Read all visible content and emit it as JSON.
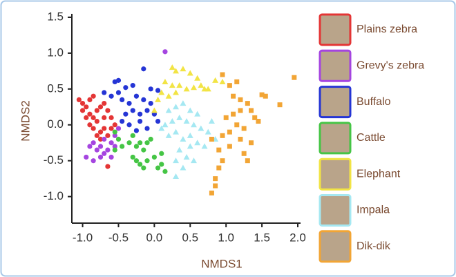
{
  "chart_data": {
    "type": "scatter",
    "xlabel": "NMDS1",
    "ylabel": "NMDS2",
    "xlim": [
      -1.15,
      2.0
    ],
    "ylim": [
      -1.37,
      1.5
    ],
    "xticks": [
      {
        "value": -1,
        "label": "-1.0"
      },
      -0.5,
      {
        "value": 0,
        "label": "0.0"
      },
      0.5,
      {
        "value": 1,
        "label": "1.0"
      },
      1.5,
      {
        "value": 2,
        "label": "2.0"
      }
    ],
    "yticks": [
      {
        "value": -1,
        "label": "-1.0"
      },
      -0.5,
      {
        "value": 0,
        "label": "0.0"
      },
      0.5,
      {
        "value": 1,
        "label": "1.0"
      },
      1.5
    ],
    "series": [
      {
        "name": "Plains zebra",
        "color": "#e43535",
        "marker": "circle",
        "x": [
          -1.05,
          -1.0,
          -0.95,
          -0.9,
          -0.85,
          -1.0,
          -0.95,
          -0.9,
          -0.85,
          -0.8,
          -0.75,
          -0.7,
          -0.65,
          -0.9,
          -0.85,
          -0.8,
          -0.75,
          -0.7,
          -0.65,
          -0.6,
          -0.75,
          -0.8,
          -0.7,
          -0.6,
          -0.55,
          -0.65
        ],
        "values": [
          0.35,
          0.3,
          0.25,
          0.35,
          0.4,
          0.2,
          0.1,
          0.15,
          0.1,
          0.2,
          0.25,
          0.3,
          0.2,
          0.0,
          -0.05,
          0.05,
          -0.1,
          -0.05,
          -0.15,
          -0.05,
          -0.2,
          -0.15,
          0.1,
          0.1,
          0.0,
          -0.58
        ]
      },
      {
        "name": "Grevy's zebra",
        "color": "#a545e0",
        "marker": "circle",
        "x": [
          -0.95,
          -0.9,
          -0.85,
          -0.8,
          -0.75,
          -0.7,
          -0.65,
          -0.6,
          -0.55,
          -0.7,
          -0.75,
          -0.6,
          -0.55,
          -0.5,
          -0.85,
          0.15
        ],
        "values": [
          -0.45,
          -0.3,
          -0.25,
          -0.35,
          -0.3,
          -0.4,
          -0.35,
          -0.25,
          -0.3,
          -0.2,
          -0.45,
          -0.45,
          -0.15,
          -0.05,
          -0.5,
          1.02
        ]
      },
      {
        "name": "Buffalo",
        "color": "#2535d5",
        "marker": "circle",
        "x": [
          -0.55,
          -0.5,
          -0.4,
          -0.3,
          -0.15,
          -0.05,
          0.05,
          -0.45,
          -0.35,
          -0.25,
          -0.15,
          -0.05,
          -0.4,
          -0.3,
          -0.2,
          -0.1,
          0.0,
          -0.45,
          -0.35,
          -0.2,
          -0.1,
          -0.25,
          -0.6,
          -0.5,
          0.05,
          -0.7
        ],
        "values": [
          0.6,
          0.62,
          0.52,
          0.55,
          0.78,
          0.5,
          0.48,
          0.35,
          0.3,
          0.4,
          0.35,
          0.3,
          0.15,
          0.2,
          0.15,
          0.2,
          0.15,
          0.05,
          0.0,
          0.05,
          -0.05,
          -0.08,
          0.4,
          0.45,
          0.05,
          0.45
        ]
      },
      {
        "name": "Cattle",
        "color": "#45c545",
        "marker": "circle",
        "x": [
          -0.55,
          -0.5,
          -0.45,
          -0.3,
          -0.25,
          -0.2,
          -0.15,
          -0.1,
          -0.05,
          -0.3,
          -0.25,
          -0.2,
          -0.1,
          0.0,
          0.1,
          0.05,
          -0.15,
          0.1,
          -0.55,
          -0.35,
          0.15
        ],
        "values": [
          -0.1,
          -0.2,
          -0.3,
          -0.15,
          -0.3,
          -0.25,
          -0.35,
          -0.25,
          -0.2,
          -0.45,
          -0.5,
          -0.55,
          -0.5,
          -0.45,
          -0.55,
          -0.6,
          -0.6,
          -0.4,
          -0.35,
          -0.25,
          -0.65
        ]
      },
      {
        "name": "Elephant",
        "color": "#f2e445",
        "marker": "triangle",
        "x": [
          0.25,
          0.3,
          0.4,
          0.5,
          0.6,
          0.65,
          0.7,
          0.15,
          0.25,
          0.35,
          0.45,
          0.55,
          0.1,
          0.2,
          0.05,
          0.85,
          0.95,
          0.0,
          0.75,
          0.3
        ],
        "values": [
          0.8,
          0.75,
          0.78,
          0.72,
          0.65,
          0.55,
          0.5,
          0.6,
          0.55,
          0.55,
          0.5,
          0.52,
          0.45,
          0.4,
          0.35,
          0.62,
          0.6,
          0.2,
          0.5,
          0.45
        ]
      },
      {
        "name": "Impala",
        "color": "#a5e8f2",
        "marker": "triangle",
        "x": [
          0.2,
          0.3,
          0.4,
          0.5,
          0.6,
          0.15,
          0.25,
          0.35,
          0.45,
          0.55,
          0.65,
          0.75,
          0.85,
          0.2,
          0.3,
          0.4,
          0.5,
          0.6,
          0.7,
          0.35,
          0.45,
          0.55,
          0.3,
          0.4,
          0.3,
          0.5,
          0.8,
          0.1
        ],
        "values": [
          0.2,
          0.25,
          0.3,
          0.2,
          0.15,
          0.0,
          0.05,
          0.1,
          0.05,
          0.0,
          -0.05,
          -0.1,
          -0.2,
          -0.15,
          -0.1,
          -0.2,
          -0.15,
          -0.25,
          -0.3,
          -0.35,
          -0.45,
          -0.5,
          -0.5,
          -0.6,
          -0.72,
          -0.3,
          0.05,
          -0.05
        ]
      },
      {
        "name": "Dik-dik",
        "color": "#f2a535",
        "marker": "square",
        "x": [
          0.95,
          1.05,
          1.15,
          1.1,
          1.2,
          1.3,
          1.35,
          1.2,
          1.1,
          1.0,
          1.15,
          1.25,
          1.05,
          0.95,
          1.2,
          1.35,
          1.05,
          0.9,
          1.25,
          1.3,
          0.95,
          0.9,
          0.85,
          0.85,
          0.8,
          1.5,
          1.55,
          1.75,
          1.95,
          1.45,
          0.8,
          1.4
        ],
        "values": [
          0.7,
          0.55,
          0.6,
          0.4,
          0.35,
          0.3,
          0.2,
          0.2,
          0.15,
          0.1,
          0.0,
          -0.05,
          -0.1,
          -0.15,
          -0.2,
          -0.25,
          -0.3,
          -0.35,
          -0.4,
          -0.5,
          -0.5,
          -0.6,
          -0.75,
          -0.85,
          -0.95,
          0.42,
          0.4,
          0.28,
          0.66,
          0.05,
          -0.2,
          0.1
        ]
      }
    ]
  }
}
